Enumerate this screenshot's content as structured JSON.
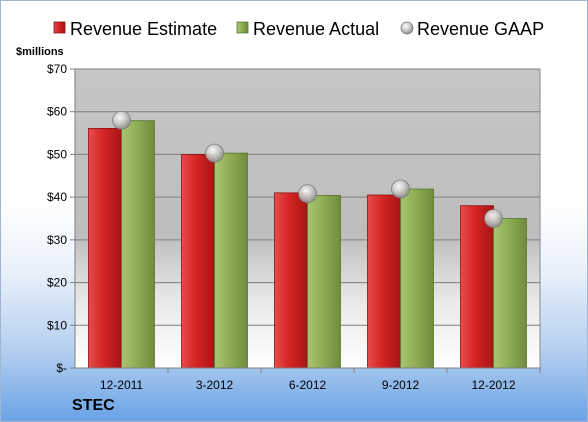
{
  "footer": {
    "company": "STEC"
  },
  "chart_data": {
    "type": "bar",
    "unit_label": "$millions",
    "categories": [
      "12-2011",
      "3-2012",
      "6-2012",
      "9-2012",
      "12-2012"
    ],
    "series": [
      {
        "name": "Revenue Estimate",
        "kind": "bar",
        "color": "#cc1f1f",
        "values": [
          56.1,
          50.0,
          41.0,
          40.5,
          38.0
        ]
      },
      {
        "name": "Revenue Actual",
        "kind": "bar",
        "color": "#8aa650",
        "values": [
          57.9,
          50.3,
          40.4,
          41.9,
          35.0
        ]
      },
      {
        "name": "Revenue GAAP",
        "kind": "marker",
        "color": "#c8c8c8",
        "values": [
          58.0,
          50.3,
          40.8,
          41.9,
          35.0
        ]
      }
    ],
    "ylim": [
      0,
      70
    ],
    "yticks": [
      0,
      10,
      20,
      30,
      40,
      50,
      60,
      70
    ],
    "ytick_labels": [
      "$-",
      "$10",
      "$20",
      "$30",
      "$40",
      "$50",
      "$60",
      "$70"
    ],
    "grid": true,
    "legend_position": "top"
  }
}
